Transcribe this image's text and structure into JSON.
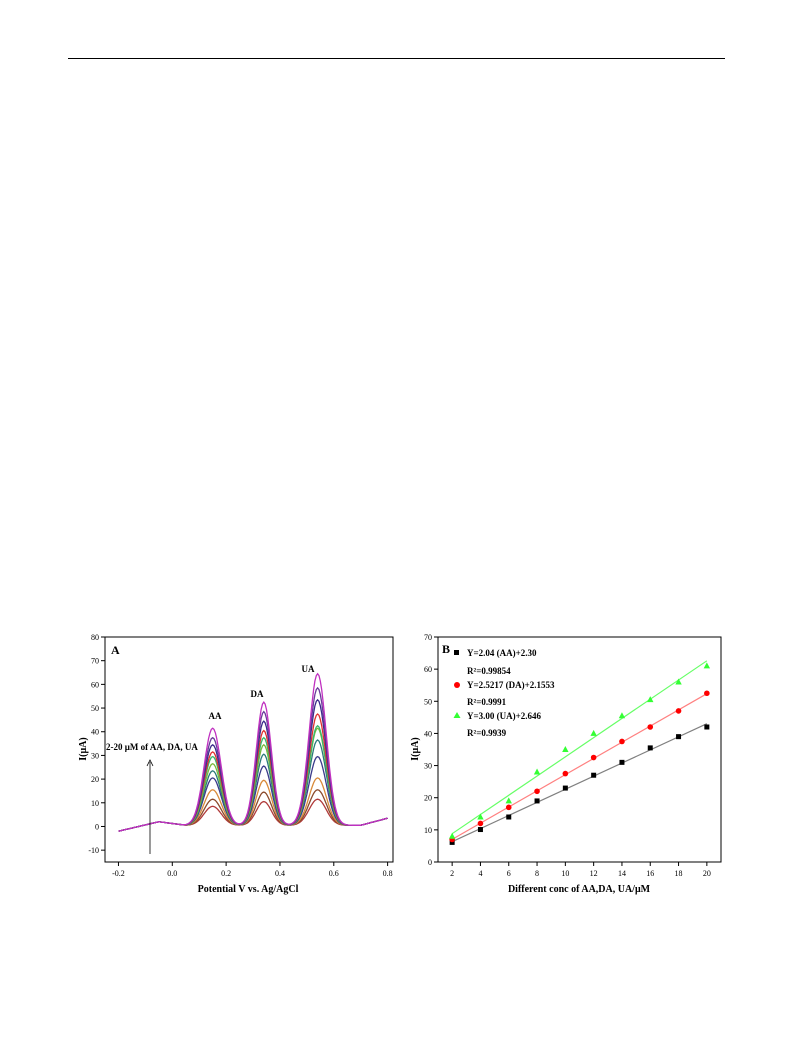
{
  "figures": [
    {
      "id": "A",
      "panel_label": "A",
      "title": "",
      "xlabel": "Potential V vs. Ag/AgCl",
      "ylabel": "I(μA)",
      "annotation": "2-20 μM of AA, DA, UA",
      "peak_labels": [
        "AA",
        "DA",
        "UA"
      ]
    },
    {
      "id": "B",
      "panel_label": "B",
      "title": "",
      "xlabel": "Different conc of AA,DA, UA/μM",
      "ylabel": "I(μA)",
      "legend": [
        {
          "eq": "Y=2.04 (AA)+2.30",
          "r2": "R²=0.99854"
        },
        {
          "eq": "Y=2.5217 (DA)+2.1553",
          "r2": "R²=0.9991"
        },
        {
          "eq": "Y=3.00 (UA)+2.646",
          "r2": "R²=0.9939"
        }
      ]
    }
  ],
  "chart_data": [
    {
      "type": "line",
      "panel": "A",
      "title": "",
      "xlabel": "Potential V vs. Ag/AgCl",
      "ylabel": "I(μA)",
      "xlim": [
        -0.25,
        0.82
      ],
      "ylim": [
        -15,
        80
      ],
      "xticks": [
        -0.2,
        0.0,
        0.2,
        0.4,
        0.6,
        0.8
      ],
      "yticks": [
        -10,
        0,
        10,
        20,
        30,
        40,
        50,
        60,
        70,
        80
      ],
      "peak_potentials": [
        0.15,
        0.34,
        0.54
      ],
      "series": [
        {
          "color": "#b03a3a",
          "peaks": [
            8,
            10,
            11
          ]
        },
        {
          "color": "#8b4a2b",
          "peaks": [
            11,
            14,
            15
          ]
        },
        {
          "color": "#d98a3a",
          "peaks": [
            15,
            19,
            20
          ]
        },
        {
          "color": "#3a3a8a",
          "peaks": [
            20,
            25,
            29
          ]
        },
        {
          "color": "#2a7a7a",
          "peaks": [
            23,
            30,
            36
          ]
        },
        {
          "color": "#7ab83a",
          "peaks": [
            26,
            34,
            41
          ]
        },
        {
          "color": "#3ab86a",
          "peaks": [
            29,
            37,
            42
          ]
        },
        {
          "color": "#e03030",
          "peaks": [
            31,
            40,
            47
          ]
        },
        {
          "color": "#3a2a8a",
          "peaks": [
            34,
            44,
            53
          ]
        },
        {
          "color": "#6a3a9a",
          "peaks": [
            37,
            48,
            58
          ]
        },
        {
          "color": "#c030c0",
          "peaks": [
            41,
            52,
            64
          ]
        }
      ]
    },
    {
      "type": "scatter",
      "panel": "B",
      "title": "",
      "xlabel": "Different conc of AA,DA, UA/μM",
      "ylabel": "I(μA)",
      "xlim": [
        1,
        21
      ],
      "ylim": [
        0,
        70
      ],
      "xticks": [
        2,
        4,
        6,
        8,
        10,
        12,
        14,
        16,
        18,
        20
      ],
      "yticks": [
        0,
        10,
        20,
        30,
        40,
        50,
        60,
        70
      ],
      "x": [
        2,
        4,
        6,
        8,
        10,
        12,
        14,
        16,
        18,
        20
      ],
      "series": [
        {
          "marker": "square",
          "color": "#000000",
          "line_color": "#808080",
          "values": [
            6.1,
            10.1,
            14.0,
            19.0,
            23.0,
            27.0,
            31.0,
            35.5,
            39.0,
            42.0
          ]
        },
        {
          "marker": "circle",
          "color": "#ff0000",
          "line_color": "#ff8080",
          "values": [
            7.0,
            12.0,
            17.0,
            22.0,
            27.5,
            32.5,
            37.5,
            42.0,
            47.0,
            52.5
          ]
        },
        {
          "marker": "triangle",
          "color": "#33ff33",
          "line_color": "#66ff66",
          "values": [
            8.0,
            14.0,
            19.0,
            28.0,
            35.0,
            40.0,
            45.5,
            50.5,
            56.0,
            61.0
          ]
        }
      ]
    }
  ]
}
